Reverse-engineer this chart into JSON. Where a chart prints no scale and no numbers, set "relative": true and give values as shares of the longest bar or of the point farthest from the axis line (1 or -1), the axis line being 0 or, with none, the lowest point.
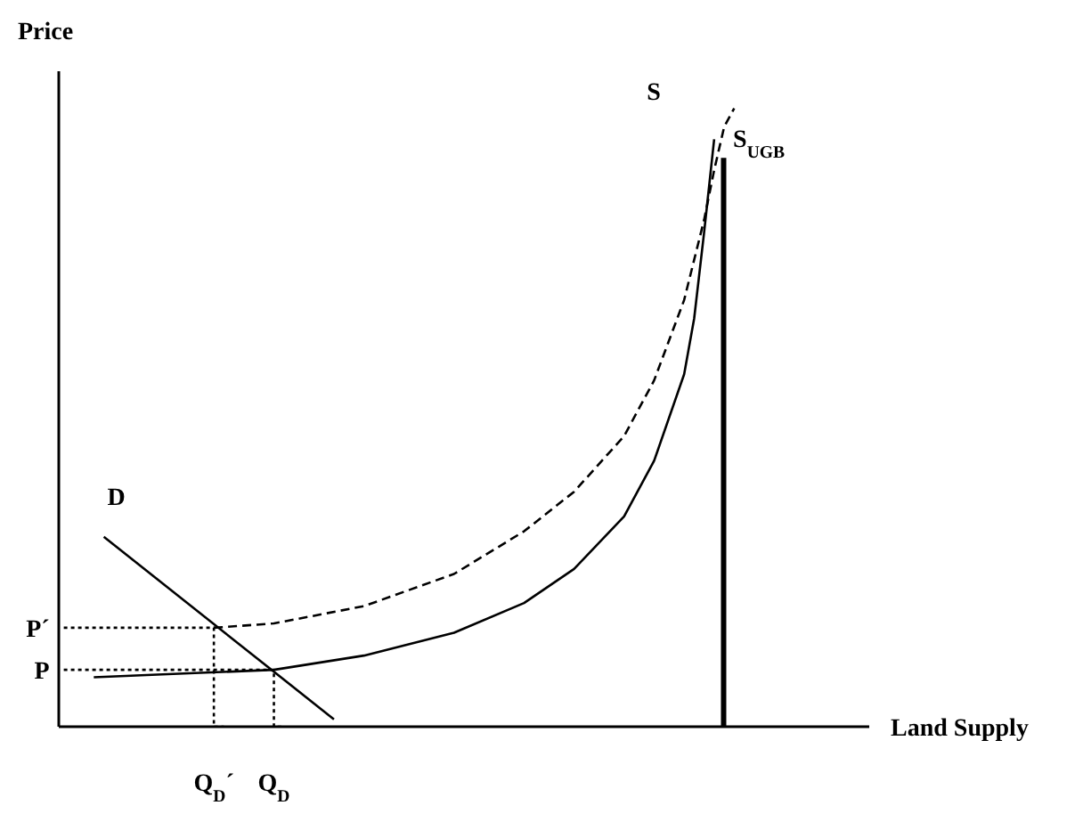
{
  "chart_data": {
    "type": "line",
    "relative": true,
    "xlabel": "Land Supply",
    "ylabel": "Price",
    "marker": "none",
    "categories": [
      null,
      null,
      null,
      null,
      null,
      null,
      null,
      null,
      null,
      null,
      null,
      null,
      null,
      null,
      null,
      "Q$_{D}$´",
      null,
      null,
      null,
      null,
      null,
      "Q$_{D}$",
      null,
      null,
      null,
      null,
      null,
      null,
      null,
      null,
      null,
      null,
      null,
      null,
      null,
      null,
      null,
      null,
      null,
      null,
      null,
      null,
      null,
      null,
      null,
      null,
      null,
      null,
      null,
      null,
      null,
      null,
      null,
      null,
      null,
      null,
      null,
      null,
      null,
      null,
      null,
      null,
      null,
      null,
      null,
      null,
      null,
      null,
      null,
      null,
      null,
      null,
      null,
      null,
      null,
      null,
      null,
      null,
      null,
      null,
      null
    ],
    "series": [
      {
        "name": "S",
        "color": "#000000",
        "line_style": "solid",
        "values": [
          null,
          null,
          null,
          0.08,
          null,
          null,
          null,
          null,
          null,
          null,
          null,
          null,
          0.086,
          null,
          null,
          null,
          null,
          null,
          null,
          null,
          null,
          0.092,
          null,
          null,
          null,
          null,
          null,
          null,
          null,
          null,
          0.115,
          null,
          null,
          null,
          null,
          null,
          null,
          null,
          null,
          0.152,
          null,
          null,
          null,
          null,
          null,
          null,
          0.2,
          null,
          null,
          null,
          null,
          0.255,
          null,
          null,
          null,
          null,
          0.34,
          null,
          null,
          0.43,
          null,
          null,
          0.57,
          0.66,
          0.8,
          0.95,
          null,
          null,
          null,
          null,
          null,
          null,
          null,
          null,
          null,
          null,
          null,
          null,
          null,
          null,
          null
        ]
      },
      {
        "color": "#000000",
        "line_style": "dashed",
        "values": [
          null,
          null,
          null,
          null,
          null,
          null,
          null,
          null,
          null,
          null,
          null,
          null,
          null,
          null,
          null,
          0.16,
          null,
          null,
          null,
          null,
          null,
          0.167,
          null,
          null,
          null,
          null,
          null,
          null,
          null,
          null,
          0.195,
          null,
          null,
          null,
          null,
          null,
          null,
          null,
          null,
          0.247,
          null,
          null,
          null,
          null,
          null,
          null,
          0.316,
          null,
          null,
          null,
          null,
          0.38,
          null,
          null,
          null,
          null,
          0.47,
          null,
          null,
          0.56,
          null,
          null,
          0.69,
          null,
          0.82,
          0.9,
          0.97,
          1,
          null,
          null,
          null,
          null,
          null,
          null,
          null,
          null,
          null,
          null,
          null,
          null,
          null
        ]
      },
      {
        "name": "D",
        "color": "#000000",
        "line_style": "solid",
        "values": [
          null,
          null,
          null,
          null,
          0.307,
          null,
          null,
          null,
          null,
          null,
          null,
          null,
          null,
          null,
          null,
          null,
          null,
          null,
          null,
          null,
          null,
          null,
          null,
          null,
          null,
          null,
          null,
          0.012,
          null,
          null,
          null,
          null,
          null,
          null,
          null,
          null,
          null,
          null,
          null,
          null,
          null,
          null,
          null,
          null,
          null,
          null,
          null,
          null,
          null,
          null,
          null,
          null,
          null,
          null,
          null,
          null,
          null,
          null,
          null,
          null,
          null,
          null,
          null,
          null,
          null,
          null,
          null,
          null,
          null,
          null,
          null,
          null,
          null,
          null,
          null,
          null,
          null,
          null,
          null,
          null,
          null
        ]
      },
      {
        "name": "S$_{UGB}$",
        "type": "bar",
        "color": "#000000",
        "values": [
          null,
          null,
          null,
          null,
          null,
          null,
          null,
          null,
          null,
          null,
          null,
          null,
          null,
          null,
          null,
          null,
          null,
          null,
          null,
          null,
          null,
          null,
          null,
          null,
          null,
          null,
          null,
          null,
          null,
          null,
          null,
          null,
          null,
          null,
          null,
          null,
          null,
          null,
          null,
          null,
          null,
          null,
          null,
          null,
          null,
          null,
          null,
          null,
          null,
          null,
          null,
          null,
          null,
          null,
          null,
          null,
          null,
          null,
          null,
          null,
          null,
          null,
          null,
          null,
          null,
          null,
          0.92,
          null,
          null,
          null,
          null,
          null,
          null,
          null,
          null,
          null,
          null,
          null,
          null,
          null,
          null
        ]
      },
      {
        "name": "P´",
        "type": "step",
        "color": "#000000",
        "line_style": "dotted",
        "values": [
          0.16,
          null,
          null,
          null,
          null,
          null,
          null,
          null,
          null,
          null,
          null,
          null,
          null,
          null,
          null,
          0.16,
          0,
          null,
          null,
          null,
          null,
          null,
          null,
          null,
          null,
          null,
          null,
          null,
          null,
          null,
          null,
          null,
          null,
          null,
          null,
          null,
          null,
          null,
          null,
          null,
          null,
          null,
          null,
          null,
          null,
          null,
          null,
          null,
          null,
          null,
          null,
          null,
          null,
          null,
          null,
          null,
          null,
          null,
          null,
          null,
          null,
          null,
          null,
          null,
          null,
          null,
          null,
          null,
          null,
          null,
          null,
          null,
          null,
          null,
          null,
          null,
          null,
          null,
          null,
          null,
          null
        ]
      },
      {
        "name": "P",
        "type": "step",
        "color": "#000000",
        "line_style": "dotted",
        "values": [
          0.092,
          null,
          null,
          null,
          null,
          null,
          null,
          null,
          null,
          null,
          null,
          null,
          null,
          null,
          null,
          null,
          null,
          null,
          null,
          null,
          null,
          0.092,
          0,
          null,
          null,
          null,
          null,
          null,
          null,
          null,
          null,
          null,
          null,
          null,
          null,
          null,
          null,
          null,
          null,
          null,
          null,
          null,
          null,
          null,
          null,
          null,
          null,
          null,
          null,
          null,
          null,
          null,
          null,
          null,
          null,
          null,
          null,
          null,
          null,
          null,
          null,
          null,
          null,
          null,
          null,
          null,
          null,
          null,
          null,
          null,
          null,
          null,
          null,
          null,
          null,
          null,
          null,
          null,
          null,
          null,
          null
        ]
      }
    ]
  }
}
